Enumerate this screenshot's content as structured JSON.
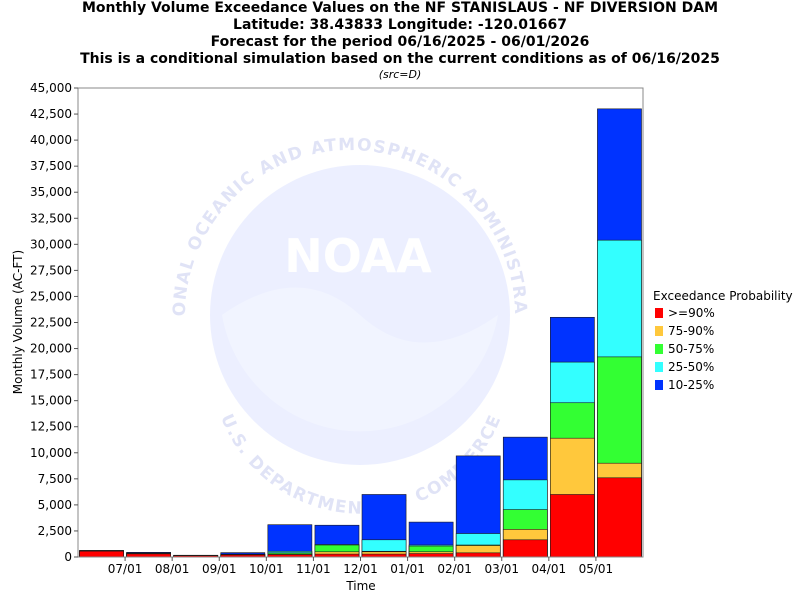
{
  "chart_data": {
    "type": "bar",
    "stacked": true,
    "title_lines": [
      "Monthly Volume Exceedance Values on the NF STANISLAUS - NF DIVERSION DAM",
      "Latitude: 38.43833 Longitude: -120.01667",
      "Forecast for the period 06/16/2025 - 06/01/2026",
      "This is a conditional simulation based on the current conditions as of 06/16/2025"
    ],
    "subtitle": "(src=D)",
    "xlabel": "Time",
    "ylabel": "Monthly Volume (AC-FT)",
    "ylim": [
      0,
      45000
    ],
    "yticks": [
      0,
      2500,
      5000,
      7500,
      10000,
      12500,
      15000,
      17500,
      20000,
      22500,
      25000,
      27500,
      30000,
      32500,
      35000,
      37500,
      40000,
      42500,
      45000
    ],
    "ytick_labels": [
      "0",
      "2,500",
      "5,000",
      "7,500",
      "10,000",
      "12,500",
      "15,000",
      "17,500",
      "20,000",
      "22,500",
      "25,000",
      "27,500",
      "30,000",
      "32,500",
      "35,000",
      "37,500",
      "40,000",
      "42,500",
      "45,000"
    ],
    "categories": [
      "06/2025",
      "07/2025",
      "08/2025",
      "09/2025",
      "10/2025",
      "11/2025",
      "12/2025",
      "01/2026",
      "02/2026",
      "03/2026",
      "04/2026",
      "05/2026"
    ],
    "xtick_labels": [
      "07/01",
      "08/01",
      "09/01",
      "10/01",
      "11/01",
      "12/01",
      "01/01",
      "02/01",
      "03/01",
      "04/01",
      "05/01"
    ],
    "legend_title": "Exceedance Probability",
    "legend_position": "right",
    "grid": false,
    "series": [
      {
        "name": ">=90%",
        "color": "#ff0000",
        "cumulative": [
          560,
          300,
          130,
          200,
          230,
          280,
          280,
          330,
          400,
          1650,
          6000,
          7600
        ]
      },
      {
        "name": "75-90%",
        "color": "#ffc83c",
        "cumulative": [
          580,
          320,
          140,
          220,
          280,
          500,
          500,
          500,
          1100,
          2650,
          11400,
          9000
        ]
      },
      {
        "name": "50-75%",
        "color": "#33ff33",
        "cumulative": [
          600,
          350,
          150,
          260,
          400,
          1150,
          550,
          1050,
          1150,
          4550,
          14800,
          19200
        ]
      },
      {
        "name": "25-50%",
        "color": "#33ffff",
        "cumulative": [
          620,
          380,
          160,
          280,
          550,
          1200,
          1650,
          1150,
          2250,
          7400,
          18700,
          30400
        ]
      },
      {
        "name": "10-25%",
        "color": "#0033ff",
        "cumulative": [
          630,
          450,
          170,
          420,
          3100,
          3050,
          6000,
          3350,
          9700,
          11500,
          23000,
          43000
        ]
      }
    ]
  },
  "watermark": {
    "logo_text": "NOAA",
    "ring_text_top": "NATIONAL OCEANIC AND ATMOSPHERIC ADMINISTRATION",
    "ring_text_bottom": "U.S. DEPARTMENT OF COMMERCE"
  }
}
